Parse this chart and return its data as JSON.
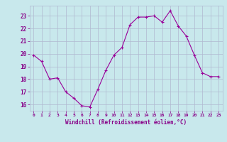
{
  "x": [
    0,
    1,
    2,
    3,
    4,
    5,
    6,
    7,
    8,
    9,
    10,
    11,
    12,
    13,
    14,
    15,
    16,
    17,
    18,
    19,
    20,
    21,
    22,
    23
  ],
  "y": [
    19.9,
    19.4,
    18.0,
    18.1,
    17.0,
    16.5,
    15.9,
    15.8,
    17.2,
    18.7,
    19.9,
    20.5,
    22.3,
    22.9,
    22.9,
    23.0,
    22.5,
    23.4,
    22.2,
    21.4,
    19.9,
    18.5,
    18.2,
    18.2
  ],
  "line_color": "#990099",
  "marker": "+",
  "bg_color": "#c8e8ec",
  "grid_color": "#b0b8d0",
  "tick_color": "#880088",
  "xlabel": "Windchill (Refroidissement éolien,°C)",
  "ylim": [
    15.5,
    23.8
  ],
  "yticks": [
    16,
    17,
    18,
    19,
    20,
    21,
    22,
    23
  ],
  "xlim": [
    -0.5,
    23.5
  ],
  "xticks": [
    0,
    1,
    2,
    3,
    4,
    5,
    6,
    7,
    8,
    9,
    10,
    11,
    12,
    13,
    14,
    15,
    16,
    17,
    18,
    19,
    20,
    21,
    22,
    23
  ]
}
